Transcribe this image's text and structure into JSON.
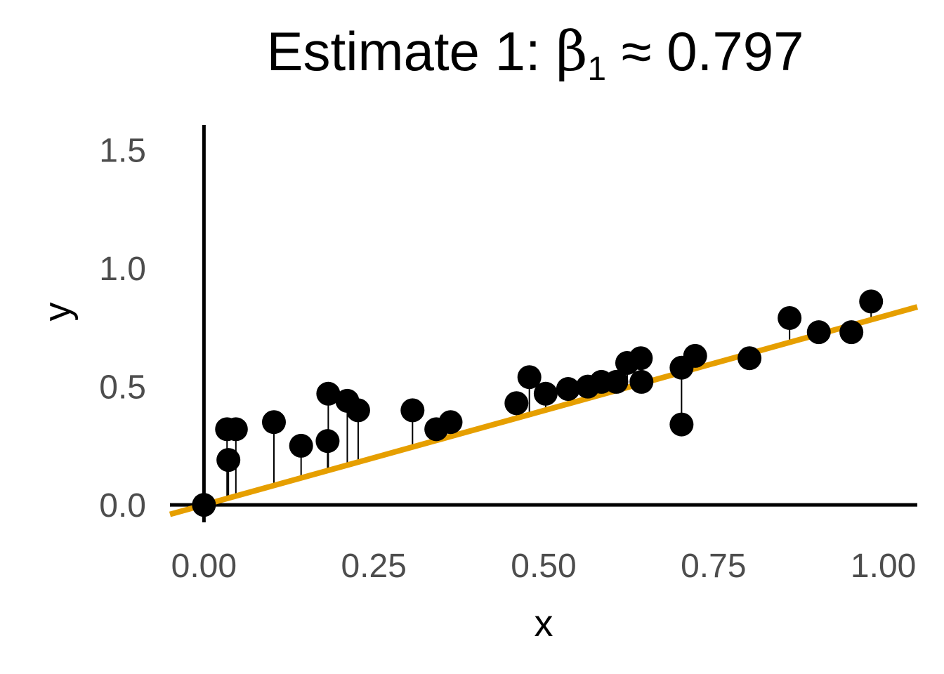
{
  "chart_data": {
    "type": "scatter",
    "title": {
      "prefix": "Estimate 1: ",
      "symbol": "β",
      "subscript": "1",
      "approx": " ≈ ",
      "value": "0.797"
    },
    "xlabel": "x",
    "ylabel": "y",
    "xlim": [
      -0.05,
      1.05
    ],
    "ylim": [
      -0.05,
      1.6
    ],
    "xticks": [
      "0.00",
      "0.25",
      "0.50",
      "0.75",
      "1.00"
    ],
    "yticks": [
      "0.0",
      "0.5",
      "1.0",
      "1.5"
    ],
    "grid": false,
    "fit_line": {
      "intercept": 0.0,
      "slope": 0.797,
      "color": "#E69F00"
    },
    "point_color": "#000000",
    "residual_segments": true,
    "points": [
      {
        "x": 0.0,
        "y": 0.0
      },
      {
        "x": 0.036,
        "y": 0.19
      },
      {
        "x": 0.034,
        "y": 0.32
      },
      {
        "x": 0.047,
        "y": 0.32
      },
      {
        "x": 0.103,
        "y": 0.35
      },
      {
        "x": 0.143,
        "y": 0.25
      },
      {
        "x": 0.182,
        "y": 0.27
      },
      {
        "x": 0.183,
        "y": 0.47
      },
      {
        "x": 0.211,
        "y": 0.44
      },
      {
        "x": 0.227,
        "y": 0.4
      },
      {
        "x": 0.307,
        "y": 0.4
      },
      {
        "x": 0.342,
        "y": 0.32
      },
      {
        "x": 0.363,
        "y": 0.35
      },
      {
        "x": 0.46,
        "y": 0.43
      },
      {
        "x": 0.479,
        "y": 0.54
      },
      {
        "x": 0.503,
        "y": 0.47
      },
      {
        "x": 0.536,
        "y": 0.49
      },
      {
        "x": 0.565,
        "y": 0.5
      },
      {
        "x": 0.585,
        "y": 0.52
      },
      {
        "x": 0.607,
        "y": 0.52
      },
      {
        "x": 0.623,
        "y": 0.6
      },
      {
        "x": 0.643,
        "y": 0.62
      },
      {
        "x": 0.644,
        "y": 0.52
      },
      {
        "x": 0.703,
        "y": 0.58
      },
      {
        "x": 0.703,
        "y": 0.34
      },
      {
        "x": 0.723,
        "y": 0.63
      },
      {
        "x": 0.803,
        "y": 0.62
      },
      {
        "x": 0.862,
        "y": 0.79
      },
      {
        "x": 0.905,
        "y": 0.73
      },
      {
        "x": 0.953,
        "y": 0.73
      },
      {
        "x": 0.982,
        "y": 0.86
      }
    ]
  }
}
